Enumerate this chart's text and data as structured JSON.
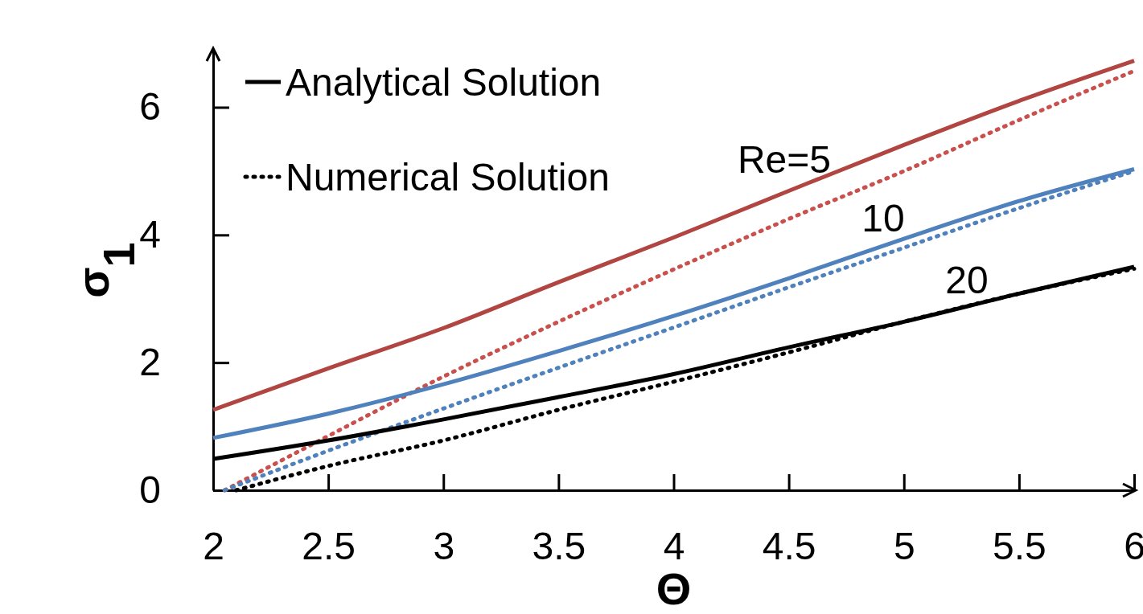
{
  "chart_data": {
    "type": "line",
    "xlabel": "Θ",
    "ylabel": "σ$_{1}$",
    "xlim": [
      2,
      6
    ],
    "ylim": [
      0,
      6.9
    ],
    "xticks": [
      2,
      2.5,
      3,
      3.5,
      4,
      4.5,
      5,
      5.5,
      6
    ],
    "yticks": [
      0,
      2,
      4,
      6
    ],
    "grid": false,
    "legend": "top left",
    "marker": "none",
    "series": [
      {
        "color": "#b04541",
        "line_style": "solid",
        "x": [
          2,
          2.5,
          3,
          3.5,
          4,
          4.5,
          5,
          5.5,
          6
        ],
        "values": [
          1.26,
          1.91,
          2.54,
          3.26,
          3.96,
          4.69,
          5.41,
          6.1,
          6.73
        ]
      },
      {
        "color": "#c9504c",
        "line_style": "dotted",
        "x": [
          2.05,
          2.5,
          3,
          3.5,
          4,
          4.5,
          5,
          5.5,
          6
        ],
        "values": [
          0,
          0.85,
          1.78,
          2.64,
          3.46,
          4.25,
          5.0,
          5.8,
          6.57
        ]
      },
      {
        "color": "#4f81bd",
        "line_style": "solid",
        "x": [
          2,
          2.5,
          3,
          3.5,
          4,
          4.5,
          5,
          5.5,
          6
        ],
        "values": [
          0.82,
          1.2,
          1.66,
          2.18,
          2.73,
          3.32,
          3.94,
          4.53,
          5.03
        ]
      },
      {
        "color": "#4f81bd",
        "line_style": "dotted",
        "x": [
          2.05,
          2.5,
          3,
          3.5,
          4,
          4.5,
          5,
          5.5,
          6
        ],
        "values": [
          0,
          0.62,
          1.28,
          1.92,
          2.55,
          3.18,
          3.8,
          4.42,
          5.0
        ]
      },
      {
        "name": "Analytical Solution",
        "color": "#000000",
        "line_style": "solid",
        "x": [
          2,
          2.5,
          3,
          3.5,
          4,
          4.5,
          5,
          5.5,
          6
        ],
        "values": [
          0.49,
          0.78,
          1.11,
          1.46,
          1.82,
          2.24,
          2.64,
          3.08,
          3.5
        ]
      },
      {
        "name": "Numerical Solution",
        "color": "#000000",
        "line_style": "dotted",
        "x": [
          2.1,
          2.5,
          3,
          3.5,
          4,
          4.5,
          5,
          5.5,
          6
        ],
        "values": [
          0,
          0.38,
          0.78,
          1.26,
          1.7,
          2.16,
          2.64,
          3.08,
          3.47
        ]
      }
    ],
    "annotations": [
      "Re=5",
      "10",
      "20"
    ]
  }
}
